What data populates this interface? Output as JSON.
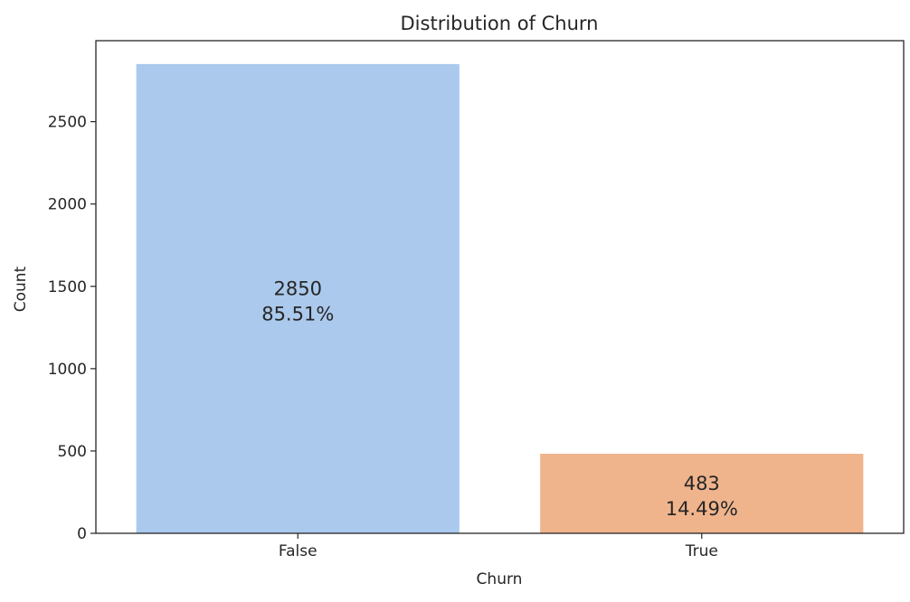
{
  "chart_data": {
    "type": "bar",
    "title": "Distribution of Churn",
    "xlabel": "Churn",
    "ylabel": "Count",
    "categories": [
      "False",
      "True"
    ],
    "values": [
      2850,
      483
    ],
    "percent_labels": [
      "85.51%",
      "14.49%"
    ],
    "ylim": [
      0,
      2992
    ],
    "yticks": [
      0,
      500,
      1000,
      1500,
      2000,
      2500
    ],
    "colors": [
      "#abc9ec",
      "#f0b48d"
    ],
    "grid": false,
    "legend": "none"
  }
}
